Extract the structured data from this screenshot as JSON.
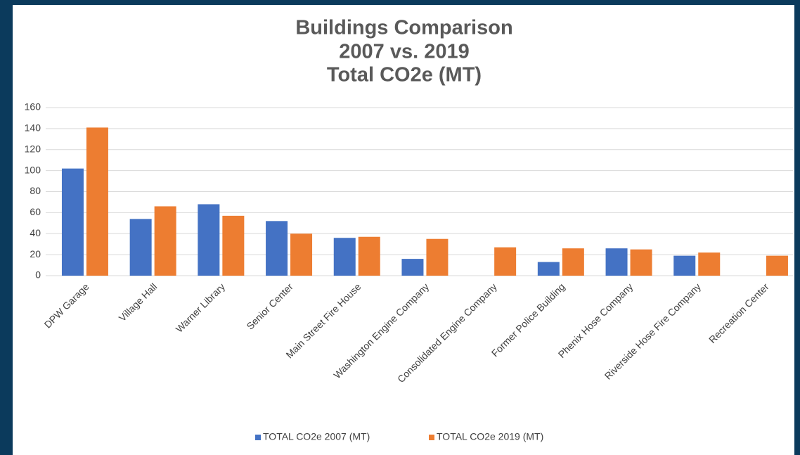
{
  "chart_data": {
    "type": "bar",
    "title": [
      "Buildings Comparison",
      "2007 vs. 2019",
      "Total CO2e (MT)"
    ],
    "categories": [
      "DPW Garage",
      "Village Hall",
      "Warner Library",
      "Senior Center",
      "Main Street Fire House",
      "Washington Engine Company",
      "Consolidated Engine Company",
      "Former Police Building",
      "Phenix Hose Company",
      "Riverside Hose Fire Company",
      "Recreation Center"
    ],
    "series": [
      {
        "name": "TOTAL CO2e 2007 (MT)",
        "color": "#4472c4",
        "values": [
          102,
          54,
          68,
          52,
          36,
          16,
          null,
          13,
          26,
          19,
          null
        ]
      },
      {
        "name": "TOTAL CO2e 2019 (MT)",
        "color": "#ed7d31",
        "values": [
          141,
          66,
          57,
          40,
          37,
          35,
          27,
          26,
          25,
          22,
          19
        ]
      }
    ],
    "ylim": [
      0,
      160
    ],
    "yticks": [
      0,
      20,
      40,
      60,
      80,
      100,
      120,
      140,
      160
    ],
    "grid": true,
    "legend": "bottom"
  }
}
